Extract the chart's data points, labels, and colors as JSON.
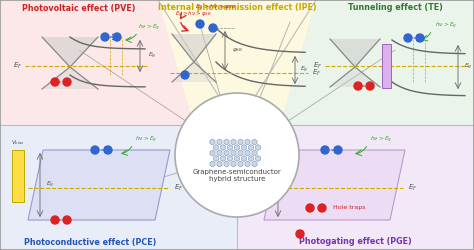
{
  "bg_pve": "#fce8e8",
  "bg_ipe": "#fdf9e0",
  "bg_te": "#eaf4ea",
  "bg_pce": "#e8edf8",
  "bg_pge": "#f3e8f8",
  "lbl_pve": "Photovoltaic effect (PVE)",
  "lbl_ipe": "Internal photoemission effect (IPE)",
  "lbl_te": "Tunneling effect (TE)",
  "lbl_pce": "Photoconductive effect (PCE)",
  "lbl_pge": "Photogating effect (PGE)",
  "col_pve": "#cc2222",
  "col_ipe": "#c8a800",
  "col_te": "#337733",
  "col_pce": "#2255bb",
  "col_pge": "#7733aa",
  "col_electron": "#3366cc",
  "col_hole": "#dd2222",
  "col_green": "#33aa33",
  "col_ef": "#ccaa00",
  "col_band": "#666666",
  "col_cone": "#bbbbbb",
  "center_label1": "Graphene-semiconductor",
  "center_label2": "hybrid structure"
}
